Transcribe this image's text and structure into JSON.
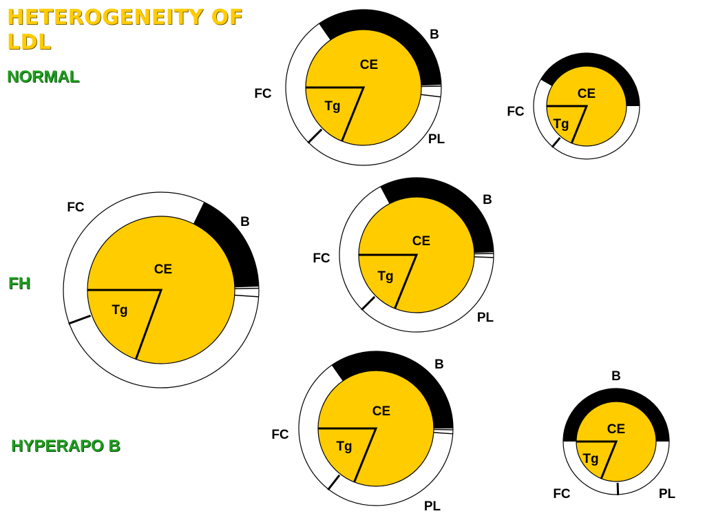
{
  "title": "HETEROGENEITY OF LDL",
  "row_labels": {
    "normal": "NORMAL",
    "fh": "FH",
    "hyperapo_b": "HYPERAPO B"
  },
  "component_labels": {
    "core_ester": "CE",
    "triglyceride": "Tg",
    "free_cholesterol": "FC",
    "apo_b": "B",
    "phospholipid": "PL"
  },
  "colors": {
    "title": "#FFCC00",
    "row_label": "#1f9e1f",
    "core": "#FFCC00",
    "apo_b_band": "#000000",
    "shell": "#ffffff"
  }
}
